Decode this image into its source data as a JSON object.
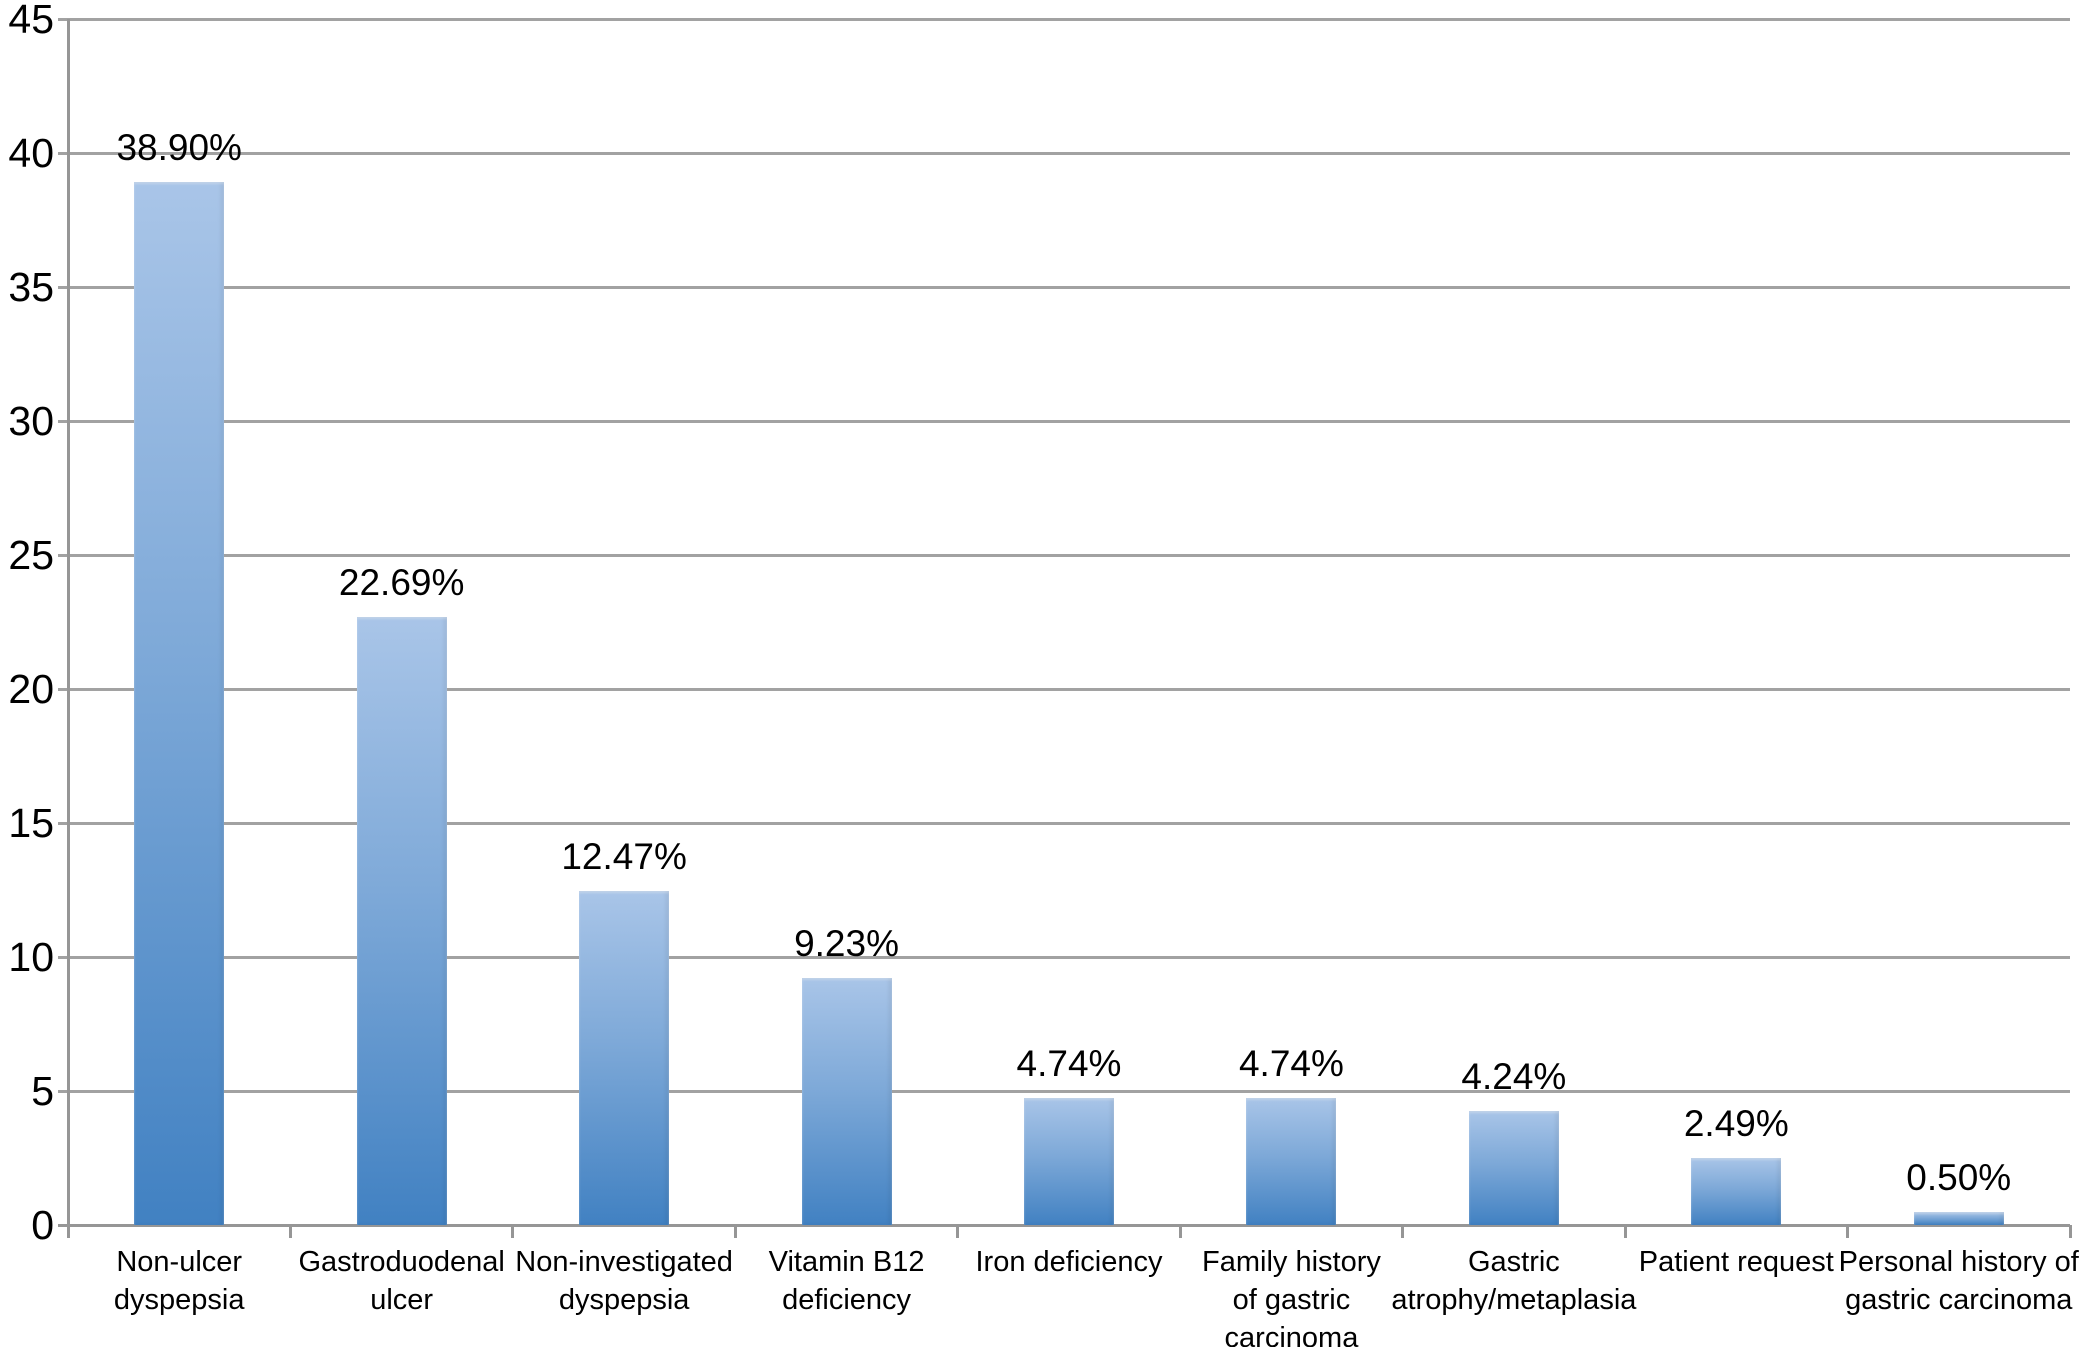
{
  "chart_data": {
    "type": "bar",
    "title": "",
    "xlabel": "",
    "ylabel": "",
    "categories": [
      "Non-ulcer dyspepsia",
      "Gastroduodenal ulcer",
      "Non-investigated dyspepsia",
      "Vitamin B12 deficiency",
      "Iron deficiency",
      "Family history of gastric carcinoma",
      "Gastric atrophy/metaplasia",
      "Patient request",
      "Personal history of gastric carcinoma"
    ],
    "category_lines": [
      [
        "Non-ulcer",
        "dyspepsia"
      ],
      [
        "Gastroduodenal",
        "ulcer"
      ],
      [
        "Non-investigated",
        "dyspepsia"
      ],
      [
        "Vitamin B12",
        "deficiency"
      ],
      [
        "Iron deficiency"
      ],
      [
        "Family history",
        "of gastric",
        "carcinoma"
      ],
      [
        "Gastric",
        "atrophy/metaplasia"
      ],
      [
        "Patient request"
      ],
      [
        "Personal history of",
        "gastric carcinoma"
      ]
    ],
    "values": [
      38.9,
      22.69,
      12.47,
      9.23,
      4.74,
      4.74,
      4.24,
      2.49,
      0.5
    ],
    "value_labels": [
      "38.90%",
      "22.69%",
      "12.47%",
      "9.23%",
      "4.74%",
      "4.74%",
      "4.24%",
      "2.49%",
      "0.50%"
    ],
    "ylim": [
      0,
      45
    ],
    "yticks": [
      0,
      5,
      10,
      15,
      20,
      25,
      30,
      35,
      40,
      45
    ],
    "ytick_labels": [
      "0",
      "5",
      "10",
      "15",
      "20",
      "25",
      "30",
      "35",
      "40",
      "45"
    ],
    "grid": true,
    "legend": false,
    "colors": {
      "bar_gradient_top": "#a9c5e8",
      "bar_gradient_mid": "#7ea9d8",
      "bar_gradient_bottom": "#4181c2",
      "gridline": "#a2a2a2",
      "axis": "#969696",
      "text": "#000000",
      "background": "#ffffff"
    }
  }
}
